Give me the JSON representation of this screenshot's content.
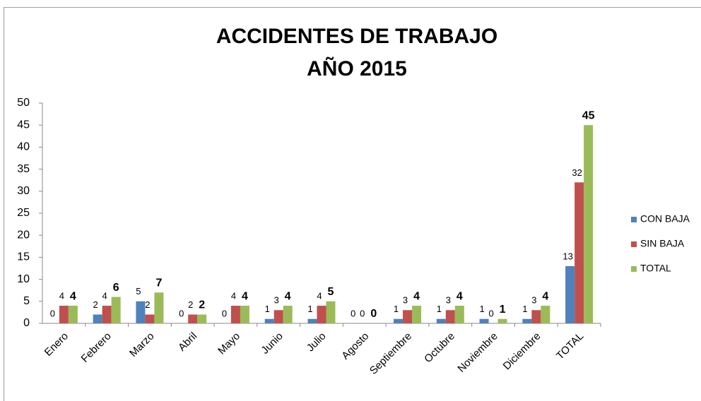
{
  "chart_data": {
    "type": "bar",
    "title": "ACCIDENTES DE TRABAJO",
    "subtitle": "AÑO 2015",
    "categories": [
      "Enero",
      "Febrero",
      "Marzo",
      "Abril",
      "Mayo",
      "Junio",
      "Julio",
      "Agosto",
      "Septiembre",
      "Octubre",
      "Noviembre",
      "Diciembre",
      "TOTAL"
    ],
    "series": [
      {
        "name": "CON BAJA",
        "color": "#4f81bd",
        "values": [
          0,
          2,
          5,
          0,
          0,
          1,
          1,
          0,
          1,
          1,
          1,
          1,
          13
        ]
      },
      {
        "name": "SIN BAJA",
        "color": "#c0504d",
        "values": [
          4,
          4,
          2,
          2,
          4,
          3,
          4,
          0,
          3,
          3,
          0,
          3,
          32
        ]
      },
      {
        "name": "TOTAL",
        "color": "#9bbb59",
        "values": [
          4,
          6,
          7,
          2,
          4,
          4,
          5,
          0,
          4,
          4,
          1,
          4,
          45
        ]
      }
    ],
    "ylim": [
      0,
      50
    ],
    "yticks": [
      0,
      5,
      10,
      15,
      20,
      25,
      30,
      35,
      40,
      45,
      50
    ],
    "grid": false,
    "legend": "right"
  }
}
